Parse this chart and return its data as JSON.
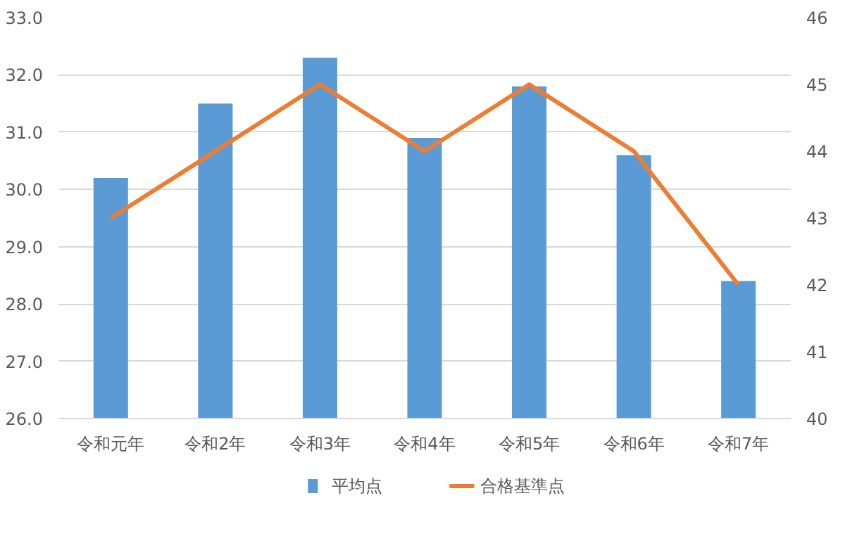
{
  "chart_data": {
    "type": "bar",
    "categories": [
      "令和元年",
      "令和2年",
      "令和3年",
      "令和4年",
      "令和5年",
      "令和6年",
      "令和7年"
    ],
    "series": [
      {
        "name": "平均点",
        "color": "#5b9bd5",
        "values": [
          30.2,
          31.5,
          32.3,
          30.9,
          31.8,
          30.6,
          28.4
        ]
      },
      {
        "name": "合格基準点",
        "type": "line",
        "axis": "y2",
        "color": "#ed7d31",
        "values": [
          43,
          44,
          45,
          44,
          45,
          44,
          42
        ]
      }
    ],
    "ylim": [
      26,
      33
    ],
    "yticks": [
      {
        "value": 26,
        "label": "26.0"
      },
      {
        "value": 27,
        "label": "27.0"
      },
      {
        "value": 28,
        "label": "28.0"
      },
      {
        "value": 29,
        "label": "29.0"
      },
      {
        "value": 30,
        "label": "30.0"
      },
      {
        "value": 31,
        "label": "31.0"
      },
      {
        "value": 32,
        "label": "32.0"
      },
      {
        "value": 33,
        "label": "33.0"
      }
    ],
    "y2lim": [
      40,
      46
    ],
    "y2ticks": [
      40,
      41,
      42,
      43,
      44,
      45,
      46
    ],
    "grid": "y",
    "legend": "bottom",
    "marker": "none",
    "line_style": "solid"
  }
}
